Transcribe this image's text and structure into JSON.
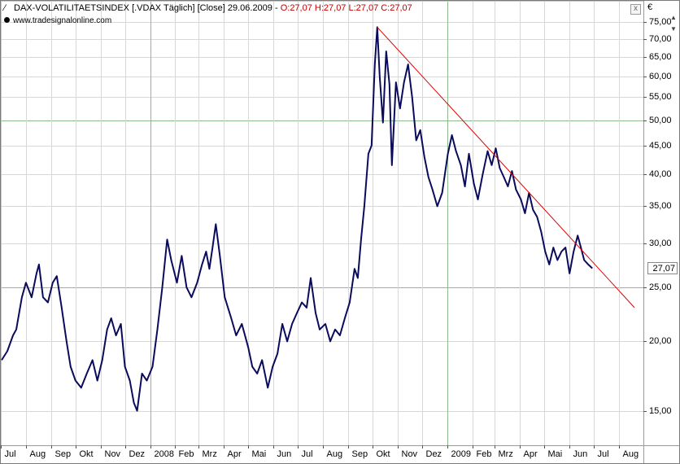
{
  "header": {
    "line_icon": "line-chart-icon",
    "instrument": "DAX-VOLATILITAETSINDEX [.VDAX  Täglich] [Close] 29.06.2009 -",
    "ohlc": "O:27,07 H:27,07 L:27,07 C:27,07",
    "source": "www.tradesignalonline.com",
    "currency": "€",
    "close_label": "x"
  },
  "colors": {
    "price_line": "#0b0b5c",
    "trend_line": "#e00000",
    "grid_major": "#8fb98f",
    "grid_minor": "#d8d8d8",
    "header_red": "#c00000"
  },
  "chart_data": {
    "type": "line",
    "title": "DAX-VOLATILITAETSINDEX",
    "y_scale": "log",
    "ylim": [
      13,
      82
    ],
    "y_ticks": [
      "15,00",
      "20,00",
      "25,00",
      "30,00",
      "35,00",
      "40,00",
      "45,00",
      "50,00",
      "55,00",
      "60,00",
      "65,00",
      "70,00",
      "75,00"
    ],
    "last_value_label": "27,07",
    "x_labels": [
      "Jul",
      "Aug",
      "Sep",
      "Okt",
      "Nov",
      "Dez",
      "2008",
      "Feb",
      "Mrz",
      "Apr",
      "Mai",
      "Jun",
      "Jul",
      "Aug",
      "Sep",
      "Okt",
      "Nov",
      "Dez",
      "2009",
      "Feb",
      "Mrz",
      "Apr",
      "Mai",
      "Jun",
      "Jul",
      "Aug"
    ],
    "x_start": "2007-07-01",
    "x_end": "2009-08-31",
    "series": [
      {
        "name": "VDAX Close",
        "points": [
          [
            "2007-07-02",
            18.5
          ],
          [
            "2007-07-09",
            19.2
          ],
          [
            "2007-07-16",
            20.5
          ],
          [
            "2007-07-20",
            21.0
          ],
          [
            "2007-07-27",
            24.0
          ],
          [
            "2007-08-01",
            25.5
          ],
          [
            "2007-08-08",
            24.0
          ],
          [
            "2007-08-14",
            26.5
          ],
          [
            "2007-08-17",
            27.5
          ],
          [
            "2007-08-22",
            24.0
          ],
          [
            "2007-08-28",
            23.5
          ],
          [
            "2007-09-03",
            25.5
          ],
          [
            "2007-09-08",
            26.2
          ],
          [
            "2007-09-14",
            23.0
          ],
          [
            "2007-09-20",
            20.0
          ],
          [
            "2007-09-25",
            18.0
          ],
          [
            "2007-10-01",
            17.0
          ],
          [
            "2007-10-08",
            16.5
          ],
          [
            "2007-10-15",
            17.5
          ],
          [
            "2007-10-22",
            18.5
          ],
          [
            "2007-10-28",
            17.0
          ],
          [
            "2007-11-03",
            18.5
          ],
          [
            "2007-11-09",
            21.0
          ],
          [
            "2007-11-14",
            22.0
          ],
          [
            "2007-11-20",
            20.5
          ],
          [
            "2007-11-26",
            21.5
          ],
          [
            "2007-12-01",
            18.0
          ],
          [
            "2007-12-07",
            17.0
          ],
          [
            "2007-12-12",
            15.5
          ],
          [
            "2007-12-16",
            15.0
          ],
          [
            "2007-12-22",
            17.5
          ],
          [
            "2007-12-28",
            17.0
          ],
          [
            "2008-01-04",
            18.0
          ],
          [
            "2008-01-10",
            21.0
          ],
          [
            "2008-01-16",
            25.0
          ],
          [
            "2008-01-22",
            30.5
          ],
          [
            "2008-01-27",
            28.0
          ],
          [
            "2008-02-03",
            25.5
          ],
          [
            "2008-02-09",
            28.5
          ],
          [
            "2008-02-15",
            25.0
          ],
          [
            "2008-02-21",
            24.0
          ],
          [
            "2008-02-28",
            25.5
          ],
          [
            "2008-03-05",
            27.5
          ],
          [
            "2008-03-10",
            29.0
          ],
          [
            "2008-03-14",
            27.0
          ],
          [
            "2008-03-18",
            29.5
          ],
          [
            "2008-03-22",
            32.5
          ],
          [
            "2008-03-27",
            28.5
          ],
          [
            "2008-04-02",
            24.0
          ],
          [
            "2008-04-10",
            22.0
          ],
          [
            "2008-04-16",
            20.5
          ],
          [
            "2008-04-23",
            21.5
          ],
          [
            "2008-05-01",
            19.5
          ],
          [
            "2008-05-06",
            18.0
          ],
          [
            "2008-05-12",
            17.5
          ],
          [
            "2008-05-18",
            18.5
          ],
          [
            "2008-05-25",
            16.5
          ],
          [
            "2008-05-31",
            18.0
          ],
          [
            "2008-06-06",
            19.0
          ],
          [
            "2008-06-12",
            21.5
          ],
          [
            "2008-06-18",
            20.0
          ],
          [
            "2008-06-24",
            21.5
          ],
          [
            "2008-06-30",
            22.5
          ],
          [
            "2008-07-06",
            23.5
          ],
          [
            "2008-07-12",
            23.0
          ],
          [
            "2008-07-17",
            26.0
          ],
          [
            "2008-07-23",
            22.5
          ],
          [
            "2008-07-28",
            21.0
          ],
          [
            "2008-08-04",
            21.5
          ],
          [
            "2008-08-10",
            20.0
          ],
          [
            "2008-08-16",
            21.0
          ],
          [
            "2008-08-22",
            20.5
          ],
          [
            "2008-08-28",
            22.0
          ],
          [
            "2008-09-03",
            23.5
          ],
          [
            "2008-09-09",
            27.0
          ],
          [
            "2008-09-13",
            26.0
          ],
          [
            "2008-09-17",
            30.5
          ],
          [
            "2008-09-21",
            35.0
          ],
          [
            "2008-09-26",
            43.5
          ],
          [
            "2008-09-30",
            45.0
          ],
          [
            "2008-10-04",
            63.0
          ],
          [
            "2008-10-07",
            73.5
          ],
          [
            "2008-10-10",
            60.0
          ],
          [
            "2008-10-14",
            49.5
          ],
          [
            "2008-10-18",
            66.5
          ],
          [
            "2008-10-22",
            58.0
          ],
          [
            "2008-10-25",
            41.5
          ],
          [
            "2008-10-30",
            58.5
          ],
          [
            "2008-11-04",
            52.5
          ],
          [
            "2008-11-09",
            58.5
          ],
          [
            "2008-11-14",
            63.0
          ],
          [
            "2008-11-19",
            55.0
          ],
          [
            "2008-11-24",
            46.0
          ],
          [
            "2008-11-29",
            48.0
          ],
          [
            "2008-12-04",
            43.0
          ],
          [
            "2008-12-09",
            39.5
          ],
          [
            "2008-12-14",
            37.5
          ],
          [
            "2008-12-20",
            35.0
          ],
          [
            "2008-12-26",
            37.0
          ],
          [
            "2009-01-02",
            43.5
          ],
          [
            "2009-01-07",
            47.0
          ],
          [
            "2009-01-12",
            44.0
          ],
          [
            "2009-01-18",
            41.5
          ],
          [
            "2009-01-23",
            38.0
          ],
          [
            "2009-01-28",
            43.5
          ],
          [
            "2009-02-03",
            38.5
          ],
          [
            "2009-02-08",
            36.0
          ],
          [
            "2009-02-14",
            40.0
          ],
          [
            "2009-02-20",
            44.0
          ],
          [
            "2009-02-25",
            41.5
          ],
          [
            "2009-03-02",
            44.5
          ],
          [
            "2009-03-07",
            41.0
          ],
          [
            "2009-03-12",
            39.5
          ],
          [
            "2009-03-17",
            38.0
          ],
          [
            "2009-03-22",
            40.5
          ],
          [
            "2009-03-27",
            37.5
          ],
          [
            "2009-04-02",
            36.0
          ],
          [
            "2009-04-07",
            34.0
          ],
          [
            "2009-04-12",
            37.0
          ],
          [
            "2009-04-17",
            34.5
          ],
          [
            "2009-04-22",
            33.5
          ],
          [
            "2009-04-27",
            31.5
          ],
          [
            "2009-05-02",
            29.0
          ],
          [
            "2009-05-07",
            27.5
          ],
          [
            "2009-05-12",
            29.5
          ],
          [
            "2009-05-17",
            28.0
          ],
          [
            "2009-05-22",
            29.0
          ],
          [
            "2009-05-27",
            29.5
          ],
          [
            "2009-06-01",
            26.5
          ],
          [
            "2009-06-06",
            29.0
          ],
          [
            "2009-06-11",
            31.0
          ],
          [
            "2009-06-15",
            29.5
          ],
          [
            "2009-06-19",
            28.0
          ],
          [
            "2009-06-24",
            27.5
          ],
          [
            "2009-06-29",
            27.07
          ]
        ]
      }
    ],
    "trendline": {
      "name": "Trendlinie",
      "from": [
        "2008-10-07",
        73.5
      ],
      "to": [
        "2009-08-20",
        23.0
      ]
    },
    "grid": true
  }
}
